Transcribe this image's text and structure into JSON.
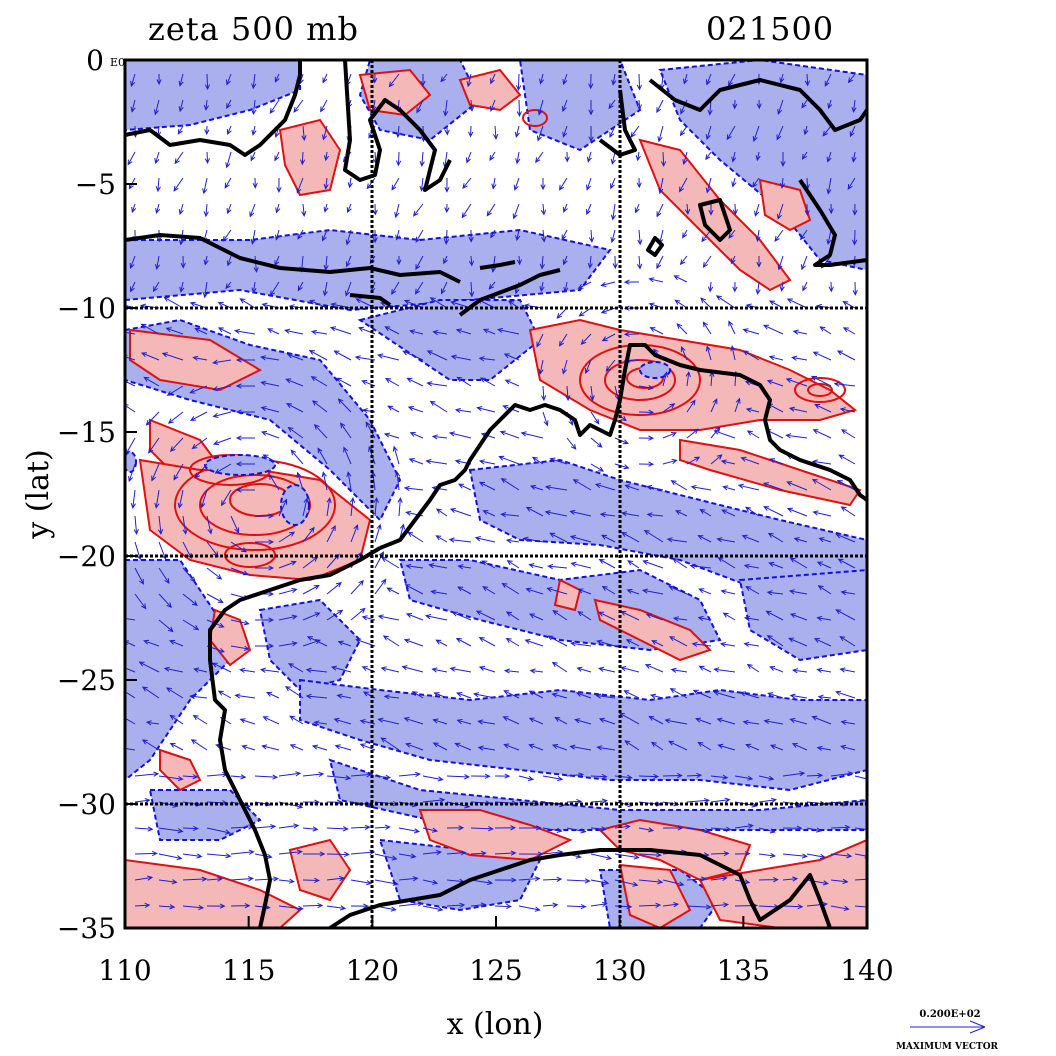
{
  "title_left": "zeta 500 mb",
  "title_right": "021500",
  "x_axis_label": "x (lon)",
  "y_axis_label": "y (lat)",
  "x_ticks": [
    "110",
    "115",
    "120",
    "125",
    "130",
    "135",
    "140"
  ],
  "y_ticks": [
    "0",
    "−5",
    "−10",
    "−15",
    "−20",
    "−25",
    "−30",
    "−35"
  ],
  "y_tick_small_suffix": "E0",
  "vector_key": {
    "value_text": "0.200E+02",
    "caption": "MAXIMUM VECTOR"
  },
  "map_extent": {
    "lon_min": 110,
    "lon_max": 140,
    "lat_min": -35,
    "lat_max": 0
  },
  "grid_lines": {
    "lon": [
      120,
      130
    ],
    "lat": [
      -10,
      -20,
      -30
    ]
  },
  "colors": {
    "negative_fill": "#aab0ee",
    "negative_contour": "#1010e0",
    "positive_fill": "#f5b8b8",
    "positive_contour": "#e01010",
    "coastline": "#000000",
    "wind_vectors": "#2020d0"
  }
}
